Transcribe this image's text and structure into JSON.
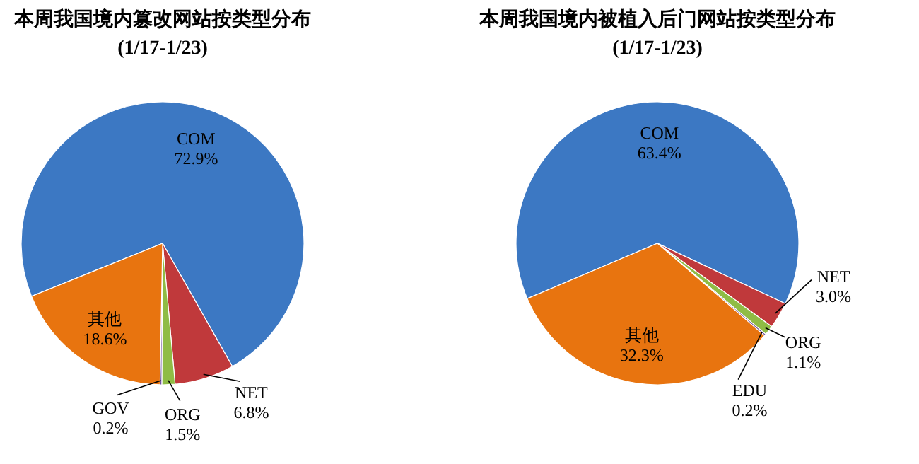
{
  "chart_data": [
    {
      "type": "pie",
      "title": "本周我国境内篡改网站按类型分布",
      "subtitle": "(1/17-1/23)",
      "categories": [
        "COM",
        "NET",
        "ORG",
        "GOV",
        "其他"
      ],
      "values": [
        72.9,
        6.8,
        1.5,
        0.2,
        18.6
      ],
      "value_labels": [
        "72.9%",
        "6.8%",
        "1.5%",
        "0.2%",
        "18.6%"
      ],
      "colors": [
        "#3c78c3",
        "#c0393b",
        "#8fbc45",
        "#6b4c9a",
        "#e8740f"
      ]
    },
    {
      "type": "pie",
      "title": "本周我国境内被植入后门网站按类型分布",
      "subtitle": "(1/17-1/23)",
      "categories": [
        "COM",
        "NET",
        "ORG",
        "EDU",
        "其他"
      ],
      "values": [
        63.4,
        3.0,
        1.1,
        0.2,
        32.3
      ],
      "value_labels": [
        "63.4%",
        "3.0%",
        "1.1%",
        "0.2%",
        "32.3%"
      ],
      "colors": [
        "#3c78c3",
        "#c0393b",
        "#8fbc45",
        "#6b4c9a",
        "#e8740f"
      ]
    }
  ]
}
